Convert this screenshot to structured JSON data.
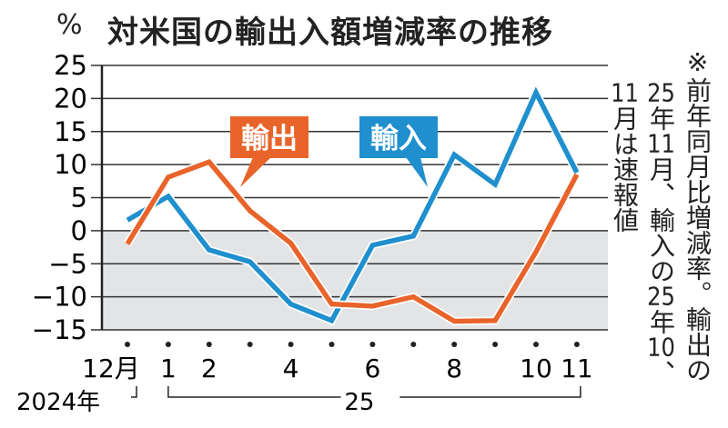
{
  "chart_data": {
    "type": "line",
    "title": "対米国の輸出入額増減率の推移",
    "ylabel": "%",
    "ylim": [
      -15,
      25
    ],
    "yticks": [
      25,
      20,
      15,
      10,
      5,
      0,
      -5,
      -10,
      -15
    ],
    "ytick_labels": [
      "25",
      "20",
      "15",
      "10",
      "5",
      "0",
      "−5",
      "−10",
      "−15"
    ],
    "grid": true,
    "negative_region_shaded": true,
    "shade_color": "#e3e4e6",
    "x": [
      "2024-12",
      "2025-01",
      "2025-02",
      "2025-03",
      "2025-04",
      "2025-05",
      "2025-06",
      "2025-07",
      "2025-08",
      "2025-09",
      "2025-10",
      "2025-11"
    ],
    "xtick_labels": [
      {
        "month": "2024-12",
        "label": "12月"
      },
      {
        "month": "2025-01",
        "label": "1"
      },
      {
        "month": "2025-02",
        "label": "2"
      },
      {
        "month": "2025-04",
        "label": "4"
      },
      {
        "month": "2025-06",
        "label": "6"
      },
      {
        "month": "2025-08",
        "label": "8"
      },
      {
        "month": "2025-10",
        "label": "10"
      },
      {
        "month": "2025-11",
        "label": "11"
      }
    ],
    "year_labels": {
      "first": "2024年",
      "second": "25"
    },
    "series": [
      {
        "name": "輸出",
        "color": "#e8642a",
        "values": [
          -2.0,
          8.1,
          10.4,
          3.0,
          -1.9,
          -11.1,
          -11.4,
          -10.0,
          -13.7,
          -13.6,
          -3.2,
          8.5
        ]
      },
      {
        "name": "輸入",
        "color": "#1f8fce",
        "values": [
          1.6,
          5.2,
          -2.9,
          -4.7,
          -11.1,
          -13.6,
          -2.2,
          -0.8,
          11.5,
          7.0,
          20.9,
          8.8
        ]
      }
    ],
    "note": [
      "※前年同月比増減率。輸出の",
      "25年11月、輸入の25年10、",
      "11月は速報値"
    ]
  }
}
